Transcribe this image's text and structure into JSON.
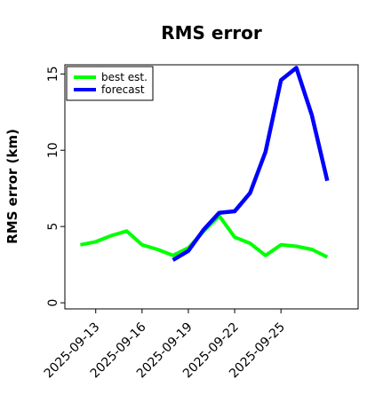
{
  "chart_data": {
    "type": "line",
    "title": "RMS error",
    "xlabel": "",
    "ylabel": "RMS error (km)",
    "x_tick_labels": [
      "2025-09-13",
      "2025-09-16",
      "2025-09-19",
      "2025-09-22",
      "2025-09-25"
    ],
    "x": [
      "2025-09-12",
      "2025-09-13",
      "2025-09-14",
      "2025-09-15",
      "2025-09-16",
      "2025-09-17",
      "2025-09-18",
      "2025-09-19",
      "2025-09-20",
      "2025-09-21",
      "2025-09-22",
      "2025-09-23",
      "2025-09-24",
      "2025-09-25",
      "2025-09-26",
      "2025-09-27",
      "2025-09-28"
    ],
    "xlim": [
      "2025-09-11",
      "2025-09-30"
    ],
    "ylim": [
      -0.4,
      15.6
    ],
    "y_ticks": [
      0,
      5,
      10,
      15
    ],
    "grid": false,
    "legend_position": "top-left",
    "series": [
      {
        "name": "best est.",
        "color": "#00ff00",
        "values": [
          3.8,
          4.0,
          4.4,
          4.7,
          3.8,
          3.5,
          3.1,
          3.6,
          4.7,
          5.7,
          4.3,
          3.9,
          3.1,
          3.8,
          3.7,
          3.5,
          3.0
        ]
      },
      {
        "name": "forecast",
        "color": "#0000ff",
        "values": [
          null,
          null,
          null,
          null,
          null,
          null,
          2.8,
          3.4,
          4.8,
          5.9,
          6.0,
          7.2,
          9.9,
          14.6,
          15.4,
          12.3,
          8.0
        ]
      }
    ]
  }
}
